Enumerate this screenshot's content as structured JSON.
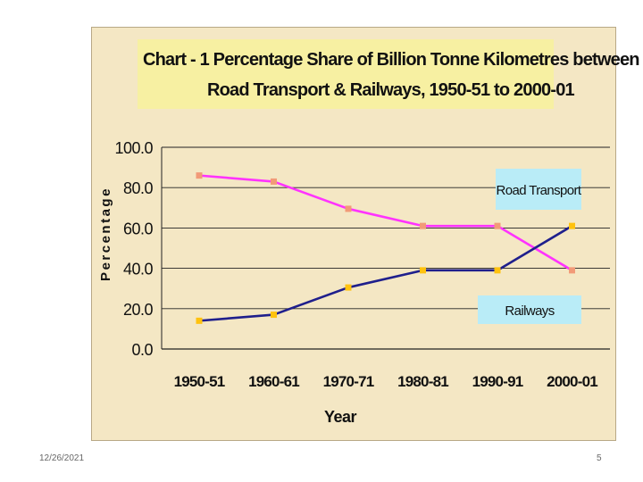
{
  "footer": {
    "date": "12/26/2021",
    "page_number": "5"
  },
  "colors": {
    "background": "#f4e7c4",
    "title_box": "#f7f0a2",
    "road": "#ff33ff",
    "road_marker": "#f29a78",
    "rail": "#1f1f8c",
    "rail_marker": "#ffc20e",
    "label_box": "#b9ecf7",
    "grid": "#222222"
  },
  "chart_data": {
    "type": "line",
    "title_line1": "Chart - 1   Percentage Share of Billion Tonne Kilometres between",
    "title_line2": "Road Transport & Railways, 1950-51 to 2000-01",
    "xlabel": "Year",
    "ylabel": "Percentage",
    "categories": [
      "1950-51",
      "1960-61",
      "1970-71",
      "1980-81",
      "1990-91",
      "2000-01"
    ],
    "y_ticks": [
      "0.0",
      "20.0",
      "40.0",
      "60.0",
      "80.0",
      "100.0"
    ],
    "ylim": [
      0,
      100
    ],
    "grid": true,
    "series": [
      {
        "name": "Road Transport",
        "values": [
          86,
          83,
          69.5,
          61,
          61,
          39
        ]
      },
      {
        "name": "Railways",
        "values": [
          14,
          17,
          30.5,
          39,
          39,
          61
        ]
      }
    ],
    "series_labels": [
      "Road Transport",
      "Railways"
    ]
  }
}
